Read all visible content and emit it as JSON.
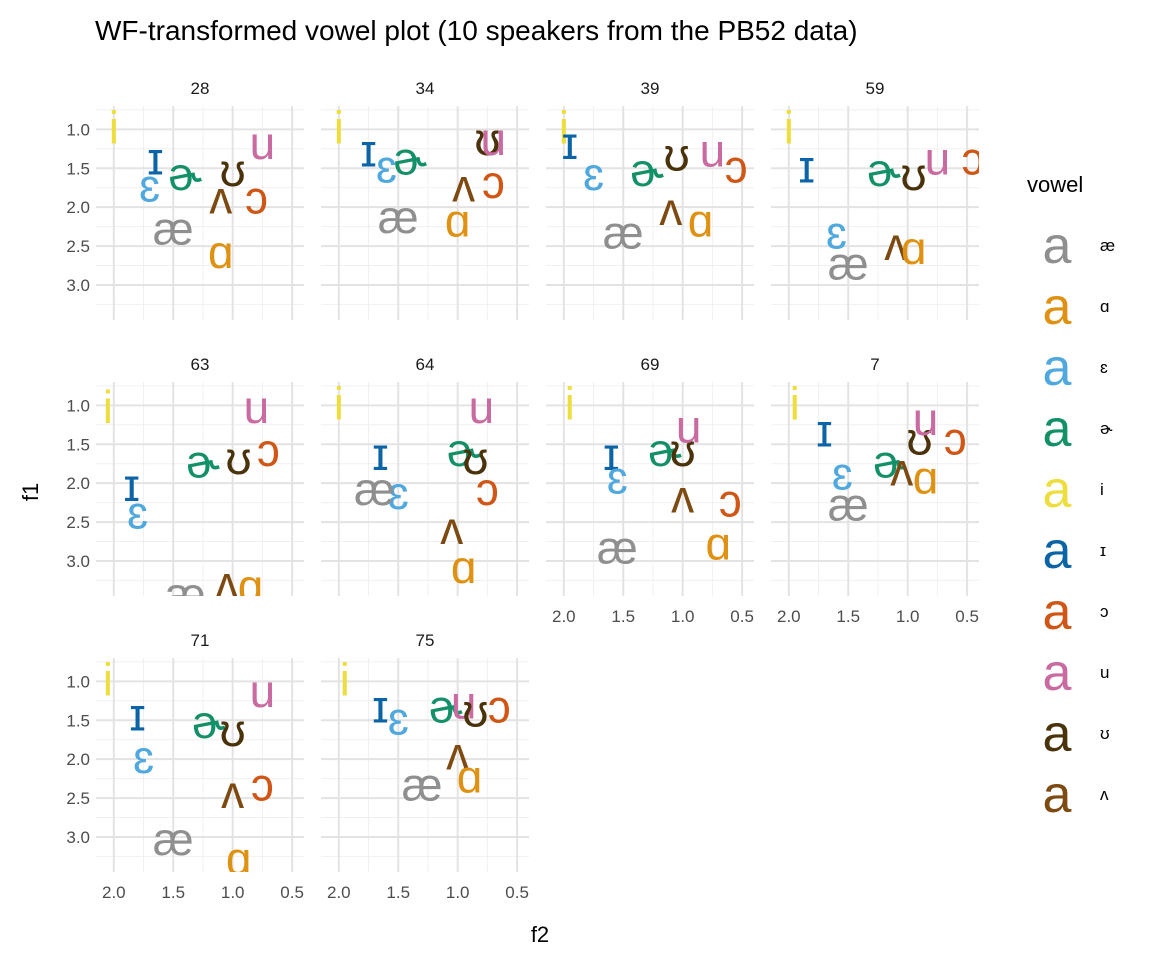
{
  "chart_data": {
    "type": "scatter",
    "title": "WF-transformed vowel plot (10 speakers from the PB52 data)",
    "xlabel": "f2",
    "ylabel": "f1",
    "x_reversed": true,
    "y_reversed": true,
    "xlim": [
      0.4,
      2.15
    ],
    "ylim": [
      0.7,
      3.45
    ],
    "x_ticks": [
      "2.0",
      "1.5",
      "1.0",
      "0.5"
    ],
    "x_tick_values": [
      2.0,
      1.5,
      1.0,
      0.5
    ],
    "y_ticks": [
      "1.0",
      "1.5",
      "2.0",
      "2.5",
      "3.0"
    ],
    "y_tick_values": [
      1.0,
      1.5,
      2.0,
      2.5,
      3.0
    ],
    "grid": true,
    "facet_by": "speaker",
    "legend": {
      "title": "vowel",
      "position": "right",
      "key_glyph": "a",
      "entries": [
        {
          "label": "æ",
          "color": "#8f8f8f"
        },
        {
          "label": "ɑ",
          "color": "#df9112"
        },
        {
          "label": "ɛ",
          "color": "#4fa8de"
        },
        {
          "label": "ɚ",
          "color": "#149069"
        },
        {
          "label": "i",
          "color": "#eede3d"
        },
        {
          "label": "ɪ",
          "color": "#0c64a7"
        },
        {
          "label": "ɔ",
          "color": "#d05616"
        },
        {
          "label": "u",
          "color": "#c96aa0"
        },
        {
          "label": "ʊ",
          "color": "#4a320b"
        },
        {
          "label": "ʌ",
          "color": "#7d4a12"
        }
      ]
    },
    "panels": [
      {
        "label": "28",
        "points": [
          {
            "vowel": "i",
            "x": 2.0,
            "y": 1.0
          },
          {
            "vowel": "ɪ",
            "x": 1.65,
            "y": 1.4
          },
          {
            "vowel": "ɛ",
            "x": 1.7,
            "y": 1.75
          },
          {
            "vowel": "ɚ",
            "x": 1.4,
            "y": 1.6
          },
          {
            "vowel": "ʊ",
            "x": 1.0,
            "y": 1.55
          },
          {
            "vowel": "u",
            "x": 0.75,
            "y": 1.2
          },
          {
            "vowel": "ɔ",
            "x": 0.8,
            "y": 1.9
          },
          {
            "vowel": "ʌ",
            "x": 1.1,
            "y": 1.9
          },
          {
            "vowel": "æ",
            "x": 1.5,
            "y": 2.3
          },
          {
            "vowel": "ɑ",
            "x": 1.1,
            "y": 2.6
          }
        ]
      },
      {
        "label": "34",
        "points": [
          {
            "vowel": "i",
            "x": 2.0,
            "y": 1.0
          },
          {
            "vowel": "ɪ",
            "x": 1.75,
            "y": 1.3
          },
          {
            "vowel": "ɛ",
            "x": 1.6,
            "y": 1.5
          },
          {
            "vowel": "ɚ",
            "x": 1.4,
            "y": 1.4
          },
          {
            "vowel": "ʊ",
            "x": 0.75,
            "y": 1.15
          },
          {
            "vowel": "u",
            "x": 0.7,
            "y": 1.15
          },
          {
            "vowel": "ɔ",
            "x": 0.7,
            "y": 1.7
          },
          {
            "vowel": "ʌ",
            "x": 0.95,
            "y": 1.75
          },
          {
            "vowel": "æ",
            "x": 1.5,
            "y": 2.15
          },
          {
            "vowel": "ɑ",
            "x": 1.0,
            "y": 2.2
          }
        ]
      },
      {
        "label": "39",
        "points": [
          {
            "vowel": "i",
            "x": 2.0,
            "y": 1.0
          },
          {
            "vowel": "ɪ",
            "x": 1.95,
            "y": 1.2
          },
          {
            "vowel": "ɛ",
            "x": 1.75,
            "y": 1.6
          },
          {
            "vowel": "ɚ",
            "x": 1.3,
            "y": 1.55
          },
          {
            "vowel": "ʊ",
            "x": 1.05,
            "y": 1.35
          },
          {
            "vowel": "u",
            "x": 0.75,
            "y": 1.3
          },
          {
            "vowel": "ɔ",
            "x": 0.55,
            "y": 1.5
          },
          {
            "vowel": "ʌ",
            "x": 1.1,
            "y": 2.05
          },
          {
            "vowel": "æ",
            "x": 1.5,
            "y": 2.35
          },
          {
            "vowel": "ɑ",
            "x": 0.85,
            "y": 2.2
          }
        ]
      },
      {
        "label": "59",
        "points": [
          {
            "vowel": "i",
            "x": 2.0,
            "y": 1.0
          },
          {
            "vowel": "ɪ",
            "x": 1.85,
            "y": 1.5
          },
          {
            "vowel": "ɛ",
            "x": 1.6,
            "y": 2.35
          },
          {
            "vowel": "ɚ",
            "x": 1.2,
            "y": 1.55
          },
          {
            "vowel": "ʊ",
            "x": 0.95,
            "y": 1.6
          },
          {
            "vowel": "u",
            "x": 0.75,
            "y": 1.4
          },
          {
            "vowel": "ɔ",
            "x": 0.45,
            "y": 1.4
          },
          {
            "vowel": "ʌ",
            "x": 1.1,
            "y": 2.5
          },
          {
            "vowel": "æ",
            "x": 1.5,
            "y": 2.75
          },
          {
            "vowel": "ɑ",
            "x": 0.95,
            "y": 2.55
          }
        ]
      },
      {
        "label": "63",
        "points": [
          {
            "vowel": "i",
            "x": 2.05,
            "y": 1.05
          },
          {
            "vowel": "ɪ",
            "x": 1.85,
            "y": 2.05
          },
          {
            "vowel": "ɛ",
            "x": 1.8,
            "y": 2.4
          },
          {
            "vowel": "ɚ",
            "x": 1.25,
            "y": 1.75
          },
          {
            "vowel": "ʊ",
            "x": 0.95,
            "y": 1.7
          },
          {
            "vowel": "u",
            "x": 0.8,
            "y": 1.05
          },
          {
            "vowel": "ɔ",
            "x": 0.7,
            "y": 1.6
          },
          {
            "vowel": "ʌ",
            "x": 1.05,
            "y": 3.3
          },
          {
            "vowel": "æ",
            "x": 1.4,
            "y": 3.45
          },
          {
            "vowel": "ɑ",
            "x": 0.85,
            "y": 3.35
          }
        ]
      },
      {
        "label": "64",
        "points": [
          {
            "vowel": "i",
            "x": 2.0,
            "y": 1.0
          },
          {
            "vowel": "ɪ",
            "x": 1.65,
            "y": 1.65
          },
          {
            "vowel": "ɛ",
            "x": 1.5,
            "y": 2.15
          },
          {
            "vowel": "ɚ",
            "x": 0.95,
            "y": 1.6
          },
          {
            "vowel": "ʊ",
            "x": 0.85,
            "y": 1.7
          },
          {
            "vowel": "u",
            "x": 0.8,
            "y": 1.05
          },
          {
            "vowel": "ɔ",
            "x": 0.75,
            "y": 2.1
          },
          {
            "vowel": "ʌ",
            "x": 1.05,
            "y": 2.6
          },
          {
            "vowel": "æ",
            "x": 1.7,
            "y": 2.1
          },
          {
            "vowel": "ɑ",
            "x": 0.95,
            "y": 3.1
          }
        ]
      },
      {
        "label": "69",
        "points": [
          {
            "vowel": "i",
            "x": 1.95,
            "y": 1.0
          },
          {
            "vowel": "ɪ",
            "x": 1.6,
            "y": 1.65
          },
          {
            "vowel": "ɛ",
            "x": 1.55,
            "y": 1.95
          },
          {
            "vowel": "ɚ",
            "x": 1.15,
            "y": 1.6
          },
          {
            "vowel": "ʊ",
            "x": 1.0,
            "y": 1.6
          },
          {
            "vowel": "u",
            "x": 0.95,
            "y": 1.3
          },
          {
            "vowel": "ɔ",
            "x": 0.6,
            "y": 2.25
          },
          {
            "vowel": "ʌ",
            "x": 1.0,
            "y": 2.2
          },
          {
            "vowel": "æ",
            "x": 1.55,
            "y": 2.85
          },
          {
            "vowel": "ɑ",
            "x": 0.7,
            "y": 2.8
          }
        ]
      },
      {
        "label": "7",
        "points": [
          {
            "vowel": "i",
            "x": 1.95,
            "y": 1.0
          },
          {
            "vowel": "ɪ",
            "x": 1.7,
            "y": 1.35
          },
          {
            "vowel": "ɛ",
            "x": 1.55,
            "y": 1.9
          },
          {
            "vowel": "ɚ",
            "x": 1.15,
            "y": 1.75
          },
          {
            "vowel": "ʊ",
            "x": 0.9,
            "y": 1.45
          },
          {
            "vowel": "u",
            "x": 0.85,
            "y": 1.2
          },
          {
            "vowel": "ɔ",
            "x": 0.6,
            "y": 1.45
          },
          {
            "vowel": "ʌ",
            "x": 1.05,
            "y": 1.85
          },
          {
            "vowel": "æ",
            "x": 1.5,
            "y": 2.3
          },
          {
            "vowel": "ɑ",
            "x": 0.85,
            "y": 1.95
          }
        ]
      },
      {
        "label": "71",
        "points": [
          {
            "vowel": "i",
            "x": 2.05,
            "y": 1.0
          },
          {
            "vowel": "ɪ",
            "x": 1.8,
            "y": 1.45
          },
          {
            "vowel": "ɛ",
            "x": 1.75,
            "y": 2.0
          },
          {
            "vowel": "ɚ",
            "x": 1.2,
            "y": 1.55
          },
          {
            "vowel": "ʊ",
            "x": 1.0,
            "y": 1.65
          },
          {
            "vowel": "u",
            "x": 0.75,
            "y": 1.15
          },
          {
            "vowel": "ɔ",
            "x": 0.75,
            "y": 2.35
          },
          {
            "vowel": "ʌ",
            "x": 1.0,
            "y": 2.45
          },
          {
            "vowel": "æ",
            "x": 1.5,
            "y": 3.05
          },
          {
            "vowel": "ɑ",
            "x": 0.95,
            "y": 3.3
          }
        ]
      },
      {
        "label": "75",
        "points": [
          {
            "vowel": "i",
            "x": 1.95,
            "y": 1.0
          },
          {
            "vowel": "ɪ",
            "x": 1.65,
            "y": 1.35
          },
          {
            "vowel": "ɛ",
            "x": 1.5,
            "y": 1.5
          },
          {
            "vowel": "ɚ",
            "x": 1.1,
            "y": 1.35
          },
          {
            "vowel": "u",
            "x": 0.95,
            "y": 1.3
          },
          {
            "vowel": "ʊ",
            "x": 0.85,
            "y": 1.4
          },
          {
            "vowel": "ɔ",
            "x": 0.65,
            "y": 1.35
          },
          {
            "vowel": "ʌ",
            "x": 1.0,
            "y": 1.95
          },
          {
            "vowel": "æ",
            "x": 1.3,
            "y": 2.35
          },
          {
            "vowel": "ɑ",
            "x": 0.9,
            "y": 2.25
          }
        ]
      }
    ]
  }
}
